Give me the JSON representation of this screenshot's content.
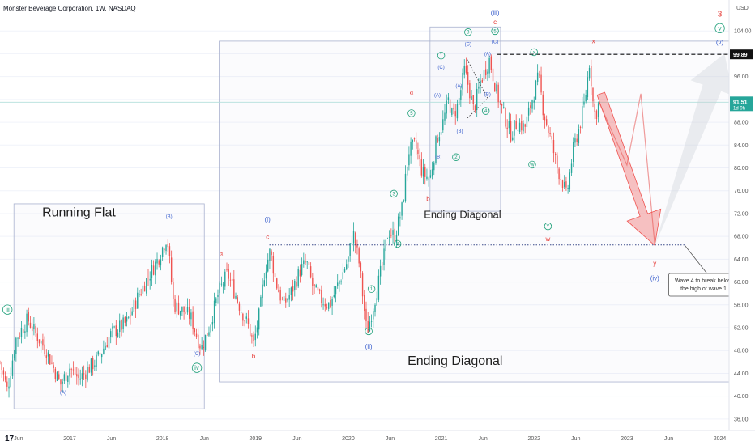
{
  "chart_data": {
    "type": "candlestick",
    "title": "Monster Beverage Corporation, 1W, NASDAQ",
    "currency": "USD",
    "yticks": [
      36,
      40,
      44,
      48,
      52,
      56,
      60,
      64,
      68,
      72,
      76,
      80,
      84,
      88,
      92,
      96,
      100,
      104
    ],
    "ylim": [
      34,
      108
    ],
    "xlim": [
      2016.25,
      2024.1
    ],
    "xticks": [
      {
        "x": 2016.45,
        "label": "Jun"
      },
      {
        "x": 2017.0,
        "label": "2017"
      },
      {
        "x": 2017.45,
        "label": "Jun"
      },
      {
        "x": 2018.0,
        "label": "2018"
      },
      {
        "x": 2018.45,
        "label": "Jun"
      },
      {
        "x": 2019.0,
        "label": "2019"
      },
      {
        "x": 2019.45,
        "label": "Jun"
      },
      {
        "x": 2020.0,
        "label": "2020"
      },
      {
        "x": 2020.45,
        "label": "Jun"
      },
      {
        "x": 2021.0,
        "label": "2021"
      },
      {
        "x": 2021.45,
        "label": "Jun"
      },
      {
        "x": 2022.0,
        "label": "2022"
      },
      {
        "x": 2022.45,
        "label": "Jun"
      },
      {
        "x": 2023.0,
        "label": "2023"
      },
      {
        "x": 2023.45,
        "label": "Jun"
      },
      {
        "x": 2024.0,
        "label": "2024"
      }
    ],
    "price_anchors": [
      [
        2016.25,
        46
      ],
      [
        2016.33,
        41
      ],
      [
        2016.42,
        50
      ],
      [
        2016.55,
        53.5
      ],
      [
        2016.63,
        51
      ],
      [
        2016.75,
        48
      ],
      [
        2016.9,
        42
      ],
      [
        2017.0,
        45
      ],
      [
        2017.1,
        43
      ],
      [
        2017.3,
        46.5
      ],
      [
        2017.45,
        51
      ],
      [
        2017.62,
        53
      ],
      [
        2017.75,
        58
      ],
      [
        2017.85,
        61
      ],
      [
        2017.95,
        64
      ],
      [
        2018.05,
        68
      ],
      [
        2018.12,
        56
      ],
      [
        2018.22,
        55
      ],
      [
        2018.3,
        54
      ],
      [
        2018.38,
        50
      ],
      [
        2018.42,
        48.5
      ],
      [
        2018.5,
        52
      ],
      [
        2018.6,
        58
      ],
      [
        2018.7,
        61.5
      ],
      [
        2018.78,
        58
      ],
      [
        2018.85,
        55
      ],
      [
        2018.93,
        52
      ],
      [
        2018.98,
        49
      ],
      [
        2019.05,
        55
      ],
      [
        2019.1,
        62
      ],
      [
        2019.16,
        65.5
      ],
      [
        2019.22,
        60
      ],
      [
        2019.3,
        56
      ],
      [
        2019.38,
        58
      ],
      [
        2019.48,
        62
      ],
      [
        2019.55,
        63.5
      ],
      [
        2019.62,
        59
      ],
      [
        2019.7,
        57
      ],
      [
        2019.8,
        56
      ],
      [
        2019.9,
        60
      ],
      [
        2020.0,
        64
      ],
      [
        2020.05,
        69
      ],
      [
        2020.12,
        63
      ],
      [
        2020.2,
        51
      ],
      [
        2020.3,
        58
      ],
      [
        2020.38,
        64
      ],
      [
        2020.43,
        69
      ],
      [
        2020.5,
        68
      ],
      [
        2020.58,
        73
      ],
      [
        2020.65,
        83
      ],
      [
        2020.72,
        84
      ],
      [
        2020.8,
        79
      ],
      [
        2020.88,
        78
      ],
      [
        2020.95,
        85
      ],
      [
        2021.02,
        88
      ],
      [
        2021.08,
        92
      ],
      [
        2021.12,
        89
      ],
      [
        2021.18,
        91
      ],
      [
        2021.25,
        97
      ],
      [
        2021.3,
        94
      ],
      [
        2021.35,
        90
      ],
      [
        2021.42,
        95
      ],
      [
        2021.47,
        97
      ],
      [
        2021.52,
        99
      ],
      [
        2021.6,
        93
      ],
      [
        2021.68,
        89
      ],
      [
        2021.75,
        86
      ],
      [
        2021.82,
        88
      ],
      [
        2021.9,
        87
      ],
      [
        2021.98,
        92
      ],
      [
        2022.05,
        96
      ],
      [
        2022.1,
        90
      ],
      [
        2022.18,
        85
      ],
      [
        2022.25,
        80
      ],
      [
        2022.3,
        78
      ],
      [
        2022.35,
        75
      ],
      [
        2022.42,
        83
      ],
      [
        2022.5,
        88
      ],
      [
        2022.55,
        92
      ],
      [
        2022.6,
        99
      ],
      [
        2022.63,
        92
      ],
      [
        2022.66,
        89
      ],
      [
        2022.7,
        91.5
      ]
    ],
    "annotations": [
      {
        "x": 2017.1,
        "y": 71.5,
        "text": "Running Flat",
        "size": 16,
        "color": "#1f1f1f"
      },
      {
        "x": 2021.23,
        "y": 71.2,
        "text": "Ending Diagonal",
        "size": 13,
        "color": "#1f1f1f"
      },
      {
        "x": 2021.15,
        "y": 45.5,
        "text": "Ending Diagonal",
        "size": 16,
        "color": "#1f1f1f"
      },
      {
        "x": 2016.33,
        "y": 54.8,
        "text": "iii",
        "size": 8,
        "color": "#1b9e77",
        "circle": true
      },
      {
        "x": 2016.93,
        "y": 40.4,
        "text": "(A)",
        "size": 6,
        "color": "#3a5fcd"
      },
      {
        "x": 2018.07,
        "y": 71.2,
        "text": "(B)",
        "size": 6,
        "color": "#3a5fcd"
      },
      {
        "x": 2018.37,
        "y": 47.2,
        "text": "(C)",
        "size": 6,
        "color": "#3a5fcd"
      },
      {
        "x": 2018.37,
        "y": 44.6,
        "text": "iv",
        "size": 8,
        "color": "#1b9e77",
        "circle": true
      },
      {
        "x": 2018.63,
        "y": 64.7,
        "text": "a",
        "size": 8,
        "color": "#e53935"
      },
      {
        "x": 2018.98,
        "y": 46.6,
        "text": "b",
        "size": 8,
        "color": "#e53935"
      },
      {
        "x": 2019.13,
        "y": 67.5,
        "text": "c",
        "size": 8,
        "color": "#e53935"
      },
      {
        "x": 2019.13,
        "y": 70.6,
        "text": "(i)",
        "size": 8,
        "color": "#3a5fcd"
      },
      {
        "x": 2020.22,
        "y": 48.3,
        "text": "(ii)",
        "size": 8,
        "color": "#3a5fcd"
      },
      {
        "x": 2020.22,
        "y": 51.1,
        "text": "2",
        "size": 6,
        "color": "#1b9e77",
        "circle": true
      },
      {
        "x": 2020.25,
        "y": 58.5,
        "text": "1",
        "size": 6,
        "color": "#1b9e77",
        "circle": true
      },
      {
        "x": 2020.49,
        "y": 75.2,
        "text": "3",
        "size": 6,
        "color": "#1b9e77",
        "circle": true
      },
      {
        "x": 2020.53,
        "y": 66.4,
        "text": "4",
        "size": 6,
        "color": "#1b9e77",
        "circle": true
      },
      {
        "x": 2020.68,
        "y": 92.9,
        "text": "a",
        "size": 8,
        "color": "#e53935"
      },
      {
        "x": 2020.68,
        "y": 89.3,
        "text": "5",
        "size": 6,
        "color": "#1b9e77",
        "circle": true
      },
      {
        "x": 2020.86,
        "y": 74.2,
        "text": "b",
        "size": 8,
        "color": "#e53935"
      },
      {
        "x": 2020.96,
        "y": 92.5,
        "text": "(A)",
        "size": 6,
        "color": "#3a5fcd"
      },
      {
        "x": 2020.97,
        "y": 81.7,
        "text": "(B)",
        "size": 6,
        "color": "#3a5fcd"
      },
      {
        "x": 2021.0,
        "y": 99.4,
        "text": "1",
        "size": 6,
        "color": "#1b9e77",
        "circle": true
      },
      {
        "x": 2021.0,
        "y": 97.4,
        "text": "(C)",
        "size": 6,
        "color": "#3a5fcd"
      },
      {
        "x": 2021.16,
        "y": 81.6,
        "text": "2",
        "size": 6,
        "color": "#1b9e77",
        "circle": true
      },
      {
        "x": 2021.19,
        "y": 94.1,
        "text": "(A)",
        "size": 6,
        "color": "#3a5fcd"
      },
      {
        "x": 2021.2,
        "y": 86.2,
        "text": "(B)",
        "size": 6,
        "color": "#3a5fcd"
      },
      {
        "x": 2021.29,
        "y": 103.5,
        "text": "3",
        "size": 6,
        "color": "#1b9e77",
        "circle": true
      },
      {
        "x": 2021.29,
        "y": 101.4,
        "text": "(C)",
        "size": 6,
        "color": "#3a5fcd"
      },
      {
        "x": 2021.5,
        "y": 99.7,
        "text": "(A)",
        "size": 6,
        "color": "#3a5fcd"
      },
      {
        "x": 2021.5,
        "y": 92.6,
        "text": "(B)",
        "size": 6,
        "color": "#3a5fcd"
      },
      {
        "x": 2021.48,
        "y": 89.7,
        "text": "4",
        "size": 6,
        "color": "#1b9e77",
        "circle": true
      },
      {
        "x": 2021.58,
        "y": 106.8,
        "text": "(iii)",
        "size": 8,
        "color": "#3a5fcd"
      },
      {
        "x": 2021.58,
        "y": 105.2,
        "text": "c",
        "size": 8,
        "color": "#e53935"
      },
      {
        "x": 2021.58,
        "y": 103.7,
        "text": "5",
        "size": 6,
        "color": "#1b9e77",
        "circle": true
      },
      {
        "x": 2021.58,
        "y": 101.8,
        "text": "(C)",
        "size": 6,
        "color": "#3a5fcd"
      },
      {
        "x": 2022.0,
        "y": 100.0,
        "text": "x",
        "size": 6,
        "color": "#1b9e77",
        "circle": true
      },
      {
        "x": 2021.98,
        "y": 80.3,
        "text": "W",
        "size": 6,
        "color": "#1b9e77",
        "circle": true
      },
      {
        "x": 2022.15,
        "y": 69.5,
        "text": "Y",
        "size": 6,
        "color": "#1b9e77",
        "circle": true
      },
      {
        "x": 2022.15,
        "y": 67.2,
        "text": "w",
        "size": 8,
        "color": "#e53935"
      },
      {
        "x": 2022.64,
        "y": 101.8,
        "text": "x",
        "size": 8,
        "color": "#e53935"
      },
      {
        "x": 2023.3,
        "y": 62.9,
        "text": "y",
        "size": 8,
        "color": "#e53935"
      },
      {
        "x": 2023.3,
        "y": 60.3,
        "text": "(iv)",
        "size": 8,
        "color": "#3a5fcd"
      },
      {
        "x": 2024.0,
        "y": 106.5,
        "text": "3",
        "size": 10,
        "color": "#e53935"
      },
      {
        "x": 2024.0,
        "y": 104.1,
        "text": "v",
        "size": 8,
        "color": "#1b9e77",
        "circle": true
      },
      {
        "x": 2024.0,
        "y": 101.6,
        "text": "(v)",
        "size": 8,
        "color": "#3a5fcd"
      }
    ],
    "note": [
      "Wave 4 to break below",
      "the high of wave 1"
    ],
    "level_line": {
      "value": 99.89,
      "label": "99.89"
    },
    "last_price": {
      "value": 91.51,
      "label": "91.51",
      "sublabel": "1d 9h"
    },
    "support_line": {
      "value": 66.5,
      "x_from": 2019.15,
      "x_to": 2023.62
    },
    "colors": {
      "up": "#26a69a",
      "down": "#ef5350",
      "wave_green": "#1b9e77",
      "wave_blue": "#3a5fcd",
      "wave_red": "#e53935"
    }
  }
}
